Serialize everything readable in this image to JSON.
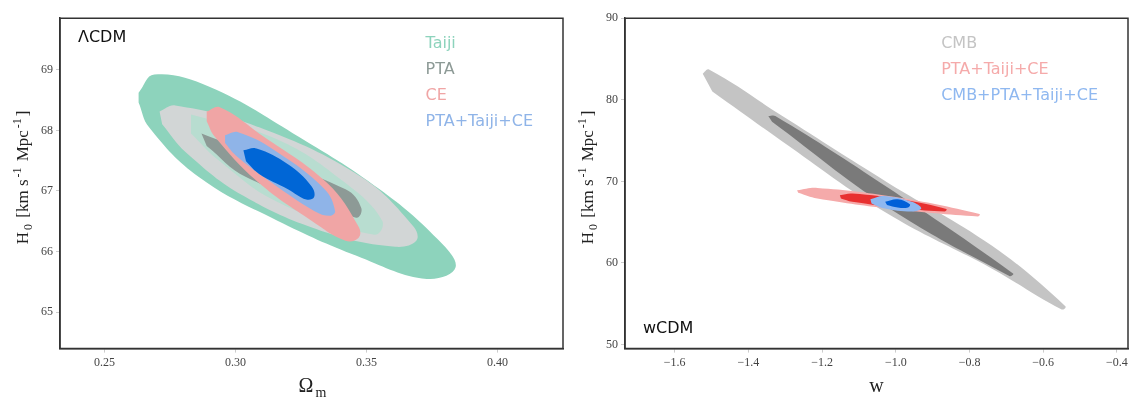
{
  "chart_data": [
    {
      "type": "area",
      "xlabel": "Ω$_{m}$",
      "ylabel": "H$_{0}$ [km s$^{-1}$ Mpc$^{-1}$]",
      "annotations": [
        "ΛCDM"
      ],
      "legend": "top right",
      "grid": false,
      "xlim": [
        0.233,
        0.425
      ],
      "ylim": [
        64.4,
        69.85
      ],
      "xticks": [
        0.25,
        {
          "value": 0.3,
          "label": "0.30"
        },
        0.35,
        {
          "value": 0.4,
          "label": "0.40"
        }
      ],
      "yticks": [
        65,
        66,
        67,
        68,
        69
      ],
      "series": [
        {
          "name": "Taiji",
          "color": "#8dd3bc",
          "x": [
            0.263,
            0.269,
            0.29,
            0.322,
            0.355,
            0.377,
            0.384,
            0.373,
            0.348,
            0.316,
            0.286,
            0.267,
            0.263
          ],
          "values": [
            68.62,
            68.92,
            68.72,
            67.95,
            67.03,
            66.21,
            65.74,
            65.55,
            65.9,
            66.51,
            67.23,
            68.05,
            68.46
          ]
        },
        {
          "color": "#d2d6d6",
          "x": [
            0.271,
            0.277,
            0.309,
            0.348,
            0.368,
            0.369,
            0.361,
            0.335,
            0.303,
            0.281,
            0.272
          ],
          "values": [
            68.31,
            68.41,
            68.05,
            67.23,
            66.41,
            66.18,
            66.08,
            66.31,
            66.92,
            67.64,
            68.1
          ]
        },
        {
          "color": "#b8ddd0",
          "x": [
            0.283,
            0.294,
            0.316,
            0.342,
            0.356,
            0.353,
            0.339,
            0.316,
            0.294,
            0.283
          ],
          "values": [
            68.26,
            null,
            67.85,
            67.13,
            66.51,
            66.28,
            null,
            66.82,
            67.49,
            67.95
          ]
        },
        {
          "name": "PTA",
          "color": "#8d9a96",
          "x": [
            0.287,
            0.292,
            0.316,
            0.342,
            0.348,
            0.346,
            0.329,
            0.304,
            0.289
          ],
          "values": [
            67.95,
            null,
            null,
            67.03,
            66.72,
            66.56,
            null,
            67.23,
            67.74
          ]
        },
        {
          "name": "CE",
          "color": "#f0a5a5",
          "x": [
            0.289,
            0.294,
            0.309,
            0.335,
            0.347,
            0.347,
            0.342,
            0.329,
            0.309,
            0.292,
            0.289
          ],
          "values": [
            68.31,
            68.38,
            67.95,
            67.13,
            66.41,
            66.23,
            66.18,
            66.51,
            67.13,
            67.9,
            68.15
          ]
        },
        {
          "name": "PTA+Taiji+CE",
          "color": "#8fb4e8",
          "x": [
            0.296,
            0.301,
            0.316,
            0.334,
            0.338,
            0.336,
            0.33,
            0.314,
            0.3,
            0.296
          ],
          "values": [
            67.92,
            67.97,
            67.64,
            67.03,
            66.67,
            66.59,
            66.67,
            67.13,
            67.59,
            67.79
          ]
        },
        {
          "color": "#0066d6",
          "x": [
            0.303,
            0.308,
            0.32,
            0.329,
            0.33,
            0.327,
            0.32,
            0.309,
            0.304
          ],
          "values": [
            67.67,
            67.7,
            67.44,
            67.08,
            66.9,
            66.86,
            67.03,
            67.28,
            67.49
          ]
        }
      ]
    },
    {
      "type": "area",
      "xlabel": "w",
      "ylabel": "H$_{0}$ [km s$^{-1}$ Mpc$^{-1}$]",
      "annotations": [
        "wCDM"
      ],
      "legend": "top right",
      "grid": false,
      "xlim": [
        -1.735,
        -0.37
      ],
      "ylim": [
        49.5,
        90
      ],
      "xticks": [
        {
          "value": -1.6,
          "label": "−1.6"
        },
        {
          "value": -1.4,
          "label": "−1.4"
        },
        {
          "value": -1.2,
          "label": "−1.2"
        },
        {
          "value": -1.0,
          "label": "−1.0"
        },
        {
          "value": -0.8,
          "label": "−0.8"
        },
        {
          "value": -0.6,
          "label": "−0.6"
        },
        {
          "value": -0.4,
          "label": "−0.4"
        }
      ],
      "yticks": [
        50,
        60,
        70,
        80,
        90
      ],
      "series": [
        {
          "name": "CMB",
          "color": "#c4c4c4",
          "x": [
            -1.524,
            -1.507,
            -1.308,
            -1.024,
            -0.739,
            -0.54,
            -0.55,
            -0.739,
            -1.024,
            -1.308,
            -1.498
          ],
          "values": [
            83.2,
            83.7,
            78.0,
            69.9,
            62.1,
            54.7,
            54.3,
            59.3,
            66.1,
            74.9,
            81.0
          ]
        },
        {
          "color": "#7a7a7a",
          "x": [
            -1.346,
            -1.327,
            -1.024,
            -0.682,
            -0.692,
            -1.024,
            -1.336
          ],
          "values": [
            78.0,
            78.0,
            69.3,
            58.7,
            58.4,
            66.9,
            77.3
          ]
        },
        {
          "name": "PTA+Taiji+CE",
          "color": "#f5aaaa",
          "x": [
            -1.268,
            -1.213,
            -1.005,
            -0.773,
            -0.777,
            -1.005,
            -1.213,
            -1.265
          ],
          "values": [
            68.9,
            69.2,
            68.1,
            66.0,
            65.7,
            66.6,
            67.9,
            68.6
          ]
        },
        {
          "color": "#e83030",
          "x": [
            -1.152,
            -1.118,
            -0.976,
            -0.863,
            -0.867,
            -0.976,
            -1.118,
            -1.149
          ],
          "values": [
            68.3,
            68.5,
            67.7,
            66.6,
            66.3,
            66.7,
            67.5,
            67.9
          ]
        },
        {
          "name": "CMB+PTA+Taiji+CE",
          "color": "#8fb8f0",
          "x": [
            -1.069,
            -1.033,
            -0.957,
            -0.931,
            -0.957,
            -1.033,
            -1.066
          ],
          "values": [
            67.8,
            68.2,
            67.5,
            66.7,
            66.3,
            66.7,
            67.3
          ]
        },
        {
          "color": "#0060d8",
          "x": [
            -1.029,
            -0.995,
            -0.962,
            -0.967,
            -0.995,
            -1.024
          ],
          "values": [
            67.5,
            67.8,
            67.2,
            66.8,
            66.8,
            67.1
          ]
        }
      ]
    }
  ]
}
